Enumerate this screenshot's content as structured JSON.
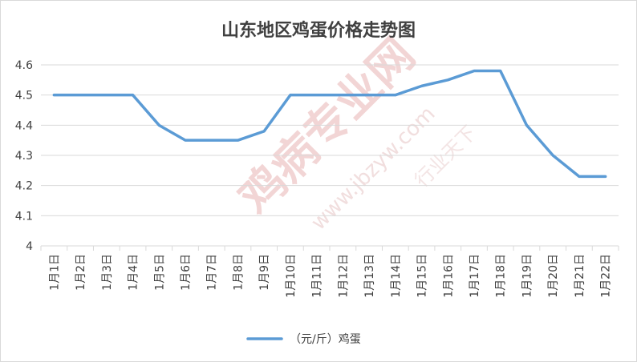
{
  "chart_data": {
    "type": "line",
    "title": "山东地区鸡蛋价格走势图",
    "xlabel": "",
    "ylabel": "",
    "categories": [
      "1月1日",
      "1月2日",
      "1月3日",
      "1月4日",
      "1月5日",
      "1月6日",
      "1月7日",
      "1月8日",
      "1月9日",
      "1月10日",
      "1月11日",
      "1月12日",
      "1月13日",
      "1月14日",
      "1月15日",
      "1月16日",
      "1月17日",
      "1月18日",
      "1月19日",
      "1月20日",
      "1月21日",
      "1月22日"
    ],
    "series": [
      {
        "name": "（元/斤）鸡蛋",
        "values": [
          4.5,
          4.5,
          4.5,
          4.5,
          4.4,
          4.35,
          4.35,
          4.35,
          4.38,
          4.5,
          4.5,
          4.5,
          4.5,
          4.5,
          4.53,
          4.55,
          4.58,
          4.58,
          4.4,
          4.3,
          4.23,
          4.23
        ],
        "color": "#5b9bd5"
      }
    ],
    "ylim": [
      4,
      4.6
    ],
    "yticks": [
      "4.6",
      "4.5",
      "4.4",
      "4.3",
      "4.2",
      "4.1",
      "4"
    ],
    "grid": true,
    "legend_position": "bottom",
    "watermark": [
      "鸡病专业网",
      "www.jbzyw.com",
      "行业天下"
    ]
  }
}
